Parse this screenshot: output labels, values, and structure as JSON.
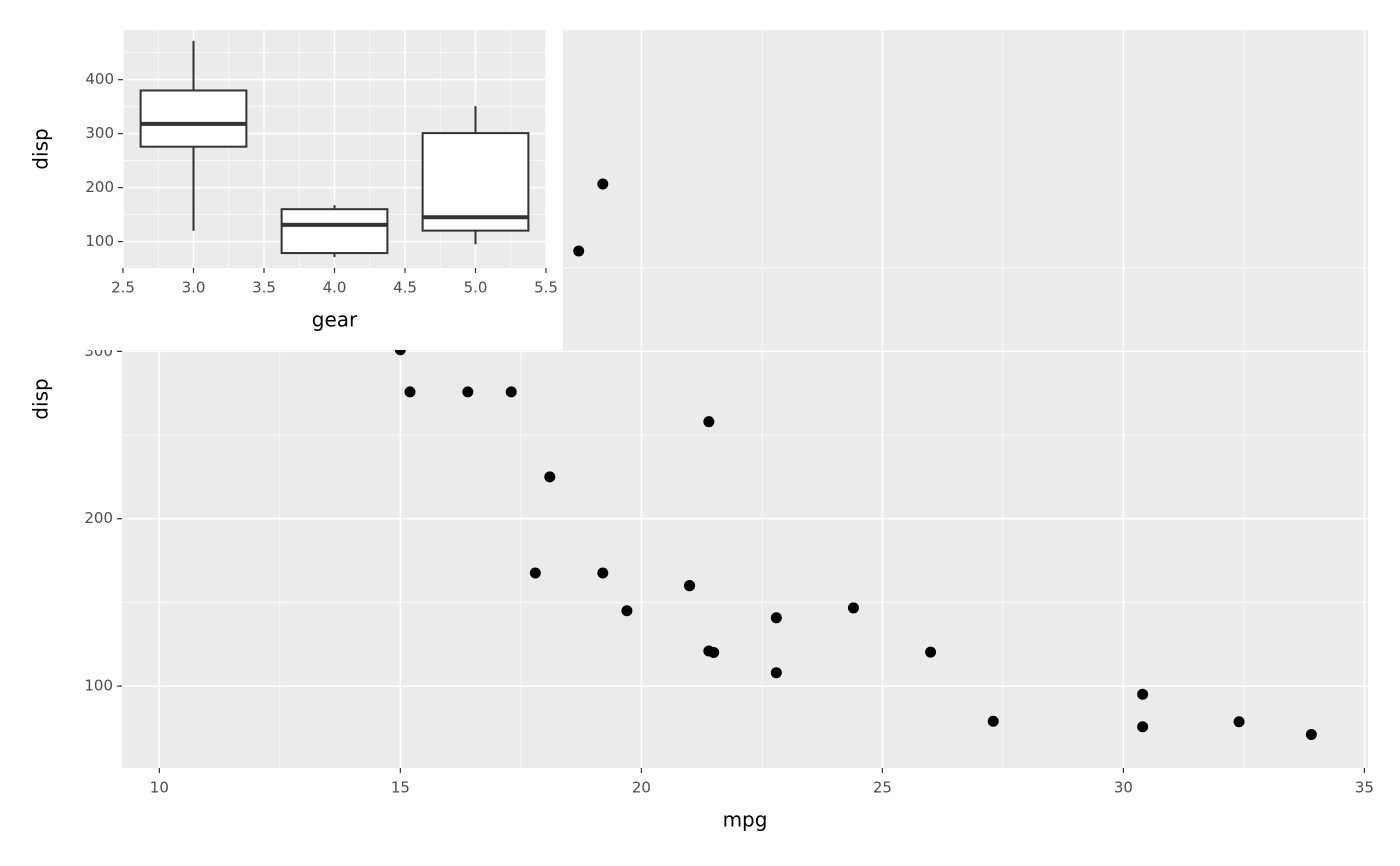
{
  "chart_data": [
    {
      "type": "scatter",
      "x_label": "mpg",
      "y_label": "disp",
      "x": [
        19.2,
        18.7,
        15.0,
        15.2,
        16.4,
        17.3,
        21.4,
        18.1,
        17.8,
        19.2,
        21.0,
        21.0,
        19.7,
        22.8,
        24.4,
        21.4,
        21.5,
        26.0,
        22.8,
        27.3,
        30.4,
        30.4,
        32.4,
        33.9
      ],
      "y": [
        400,
        360,
        301,
        275.8,
        275.8,
        275.8,
        258,
        225,
        167.6,
        167.6,
        160,
        160,
        145,
        140.8,
        146.7,
        121,
        120.1,
        120.3,
        108,
        79,
        95.1,
        75.7,
        78.7,
        71.1
      ],
      "color": "#000000",
      "xlim": [
        9.225,
        35.075
      ],
      "ylim": [
        51.05,
        492.05
      ],
      "xticks": [
        10,
        15,
        20,
        25,
        30,
        35
      ],
      "yticks": [
        100,
        200,
        300
      ],
      "grid": true
    },
    {
      "type": "box",
      "x_label": "gear",
      "y_label": "disp",
      "x": [
        3,
        4,
        5
      ],
      "min": [
        120.1,
        71.1,
        95.1
      ],
      "q1": [
        275.8,
        78.7,
        120.3
      ],
      "median": [
        318,
        130.9,
        145.2
      ],
      "q3": [
        380,
        160,
        301
      ],
      "max": [
        472,
        167.6,
        351
      ],
      "color": "#333333",
      "xlim": [
        2.5,
        5.5
      ],
      "ylim": [
        51.05,
        492.05
      ],
      "xticks": [
        2.5,
        {
          "value": 3,
          "label": "3.0"
        },
        3.5,
        {
          "value": 4,
          "label": "4.0"
        },
        4.5,
        {
          "value": 5,
          "label": "5.0"
        },
        5.5
      ],
      "yticks": [
        100,
        200,
        300,
        400
      ],
      "grid": true
    }
  ]
}
